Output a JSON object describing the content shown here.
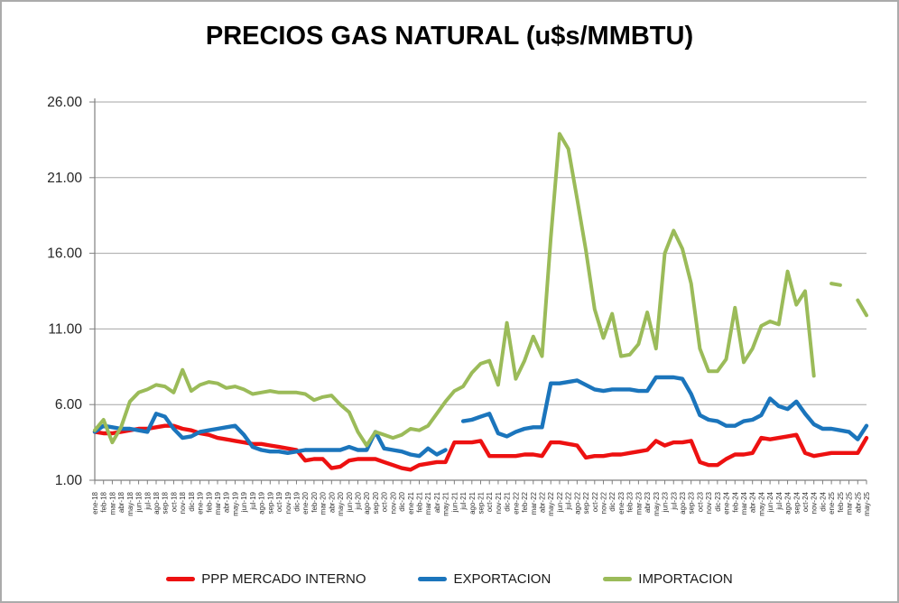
{
  "chart_data": {
    "type": "line",
    "title": "PRECIOS GAS NATURAL (u$s/MMBTU)",
    "xlabel": "",
    "ylabel": "",
    "grid": true,
    "legend_position": "bottom",
    "y_axis": {
      "min": 1,
      "max": 26,
      "tick_values": [
        1,
        6,
        11,
        16,
        21,
        26
      ],
      "tick_labels": [
        "1.00",
        "6.00",
        "11.00",
        "16.00",
        "21.00",
        "26.00"
      ]
    },
    "categories": [
      "ene-18",
      "feb-18",
      "mar-18",
      "abr-18",
      "may-18",
      "jun-18",
      "jul-18",
      "ago-18",
      "sep-18",
      "oct-18",
      "nov-18",
      "dic-18",
      "ene-19",
      "feb-19",
      "mar-19",
      "abr-19",
      "may-19",
      "jun-19",
      "jul-19",
      "ago-19",
      "sep-19",
      "oct-19",
      "nov-19",
      "dic-19",
      "ene-20",
      "feb-20",
      "mar-20",
      "abr-20",
      "may-20",
      "jun-20",
      "jul-20",
      "ago-20",
      "sep-20",
      "oct-20",
      "nov-20",
      "dic-20",
      "ene-21",
      "feb-21",
      "mar-21",
      "abr-21",
      "may-21",
      "jun-21",
      "jul-21",
      "ago-21",
      "sep-21",
      "oct-21",
      "nov-21",
      "dic-21",
      "ene-22",
      "feb-22",
      "mar-22",
      "abr-22",
      "may-22",
      "jun-22",
      "jul-22",
      "ago-22",
      "sep-22",
      "oct-22",
      "nov-22",
      "dic-22",
      "ene-23",
      "feb-23",
      "mar-23",
      "abr-23",
      "may-23",
      "jun-23",
      "jul-23",
      "ago-23",
      "sep-23",
      "oct-23",
      "nov-23",
      "dic-23",
      "ene-24",
      "feb-24",
      "mar-24",
      "abr-24",
      "may-24",
      "jun-24",
      "jul-24",
      "ago-24",
      "sep-24",
      "oct-24",
      "nov-24",
      "dic-24",
      "ene-25",
      "feb-25",
      "mar-25",
      "abr-25",
      "may-25"
    ],
    "series": [
      {
        "name": "PPP MERCADO INTERNO",
        "color": "#ED1111",
        "stroke_width": 4.4,
        "values": [
          4.2,
          4.1,
          4.1,
          4.2,
          4.3,
          4.4,
          4.4,
          4.5,
          4.6,
          4.6,
          4.4,
          4.3,
          4.1,
          4.0,
          3.8,
          3.7,
          3.6,
          3.5,
          3.4,
          3.4,
          3.3,
          3.2,
          3.1,
          3.0,
          2.3,
          2.4,
          2.4,
          1.8,
          1.9,
          2.3,
          2.4,
          2.4,
          2.4,
          2.2,
          2.0,
          1.8,
          1.7,
          2.0,
          2.1,
          2.2,
          2.2,
          3.5,
          3.5,
          3.5,
          3.6,
          2.6,
          2.6,
          2.6,
          2.6,
          2.7,
          2.7,
          2.6,
          3.5,
          3.5,
          3.4,
          3.3,
          2.5,
          2.6,
          2.6,
          2.7,
          2.7,
          2.8,
          2.9,
          3.0,
          3.6,
          3.3,
          3.5,
          3.5,
          3.6,
          2.2,
          2.0,
          2.0,
          2.4,
          2.7,
          2.7,
          2.8,
          3.8,
          3.7,
          3.8,
          3.9,
          4.0,
          2.8,
          2.6,
          2.7,
          2.8,
          2.8,
          2.8,
          2.8,
          3.8
        ]
      },
      {
        "name": "EXPORTACION",
        "color": "#1B75BC",
        "stroke_width": 4.4,
        "values": [
          4.2,
          4.6,
          4.5,
          4.4,
          4.4,
          4.3,
          4.2,
          5.4,
          5.2,
          4.4,
          3.8,
          3.9,
          4.2,
          4.3,
          4.4,
          4.5,
          4.6,
          4.0,
          3.2,
          3.0,
          2.9,
          2.9,
          2.8,
          2.9,
          3.0,
          3.0,
          3.0,
          3.0,
          3.0,
          3.2,
          3.0,
          3.0,
          4.2,
          3.1,
          3.0,
          2.9,
          2.7,
          2.6,
          3.1,
          2.7,
          3.0,
          null,
          4.9,
          5.0,
          5.2,
          5.4,
          4.1,
          3.9,
          4.2,
          4.4,
          4.5,
          4.5,
          7.4,
          7.4,
          7.5,
          7.6,
          7.3,
          7.0,
          6.9,
          7.0,
          7.0,
          7.0,
          6.9,
          6.9,
          7.8,
          7.8,
          7.8,
          7.7,
          6.7,
          5.3,
          5.0,
          4.9,
          4.6,
          4.6,
          4.9,
          5.0,
          5.3,
          6.4,
          5.9,
          5.7,
          6.2,
          5.4,
          4.7,
          4.4,
          4.4,
          4.3,
          4.2,
          3.7,
          4.6
        ]
      },
      {
        "name": "IMPORTACION",
        "color": "#9BBB59",
        "stroke_width": 4.0,
        "values": [
          4.3,
          5.0,
          3.5,
          4.5,
          6.2,
          6.8,
          7.0,
          7.3,
          7.2,
          6.8,
          8.3,
          6.9,
          7.3,
          7.5,
          7.4,
          7.1,
          7.2,
          7.0,
          6.7,
          6.8,
          6.9,
          6.8,
          6.8,
          6.8,
          6.7,
          6.3,
          6.5,
          6.6,
          6.0,
          5.5,
          4.2,
          3.3,
          4.2,
          4.0,
          3.8,
          4.0,
          4.4,
          4.3,
          4.6,
          5.4,
          6.2,
          6.9,
          7.2,
          8.1,
          8.7,
          8.9,
          7.3,
          11.4,
          7.7,
          8.9,
          10.5,
          9.2,
          17.0,
          23.9,
          22.9,
          19.6,
          16.2,
          12.3,
          10.4,
          12.0,
          9.2,
          9.3,
          10.0,
          12.1,
          9.7,
          16.0,
          17.5,
          16.3,
          14.0,
          9.7,
          8.2,
          8.2,
          9.0,
          12.4,
          8.8,
          9.7,
          11.2,
          11.5,
          11.3,
          14.8,
          12.6,
          13.5,
          7.9,
          null,
          14.0,
          13.9,
          null,
          12.9,
          11.9
        ]
      }
    ]
  },
  "style": {
    "grid_color": "#a6a6a6",
    "axis_color": "#7f7f7f",
    "y_label_color": "#262626",
    "x_label_color": "#333333"
  }
}
